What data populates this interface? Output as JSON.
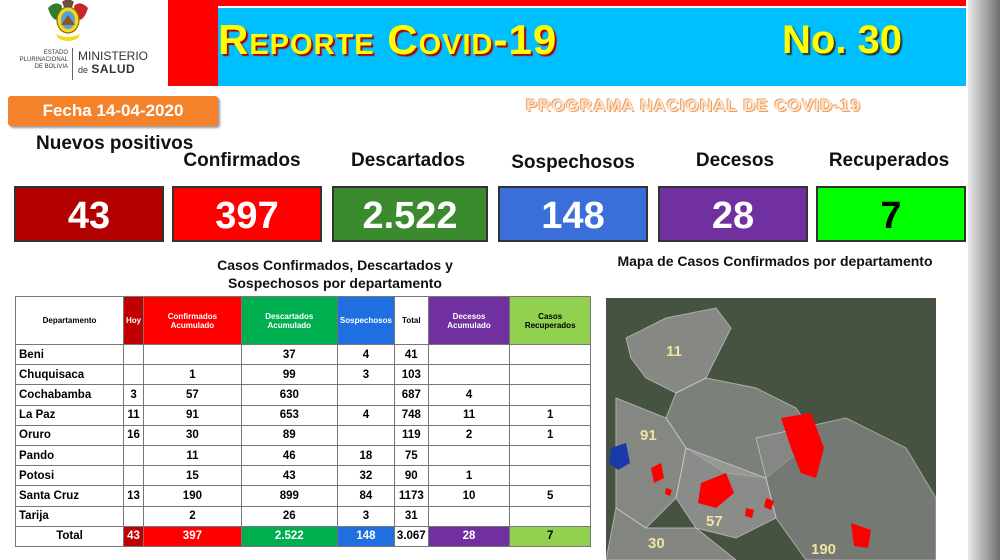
{
  "header": {
    "logo": {
      "state_lines": [
        "ESTADO",
        "PLURINACIONAL",
        "DE BOLIVIA"
      ],
      "ministry_top": "MINISTERIO",
      "ministry_de": "de",
      "ministry_bottom": "SALUD"
    },
    "title": "Reporte Covid-19",
    "report_number": "No. 30",
    "date": "Fecha 14-04-2020",
    "program": "PROGRAMA NACIONAL DE COVID-19"
  },
  "colors": {
    "banner_red": "#ff0000",
    "banner_cyan": "#00bfff",
    "title_yellow": "#ffff00",
    "date_orange": "#f4822a"
  },
  "stats": [
    {
      "label": "Nuevos positivos",
      "value": "43",
      "color": "#b30000"
    },
    {
      "label": "Confirmados",
      "value": "397",
      "color": "#ff0000"
    },
    {
      "label": "Descartados",
      "value": "2.522",
      "color": "#3c8a2e"
    },
    {
      "label": "Sospechosos",
      "value": "148",
      "color": "#3a6ed8"
    },
    {
      "label": "Decesos",
      "value": "28",
      "color": "#7030a0"
    },
    {
      "label": "Recuperados",
      "value": "7",
      "color": "#00ff00",
      "text_color": "#000000"
    }
  ],
  "table": {
    "title": "Casos Confirmados, Descartados y Sospechosos por departamento",
    "headers": [
      {
        "label": "Departamento",
        "bg": "#ffffff",
        "fg": "#000000"
      },
      {
        "label": "Hoy",
        "bg": "#c00000",
        "fg": "#ffffff"
      },
      {
        "label": "Confirmados Acumulado",
        "bg": "#ff0000",
        "fg": "#ffffff"
      },
      {
        "label": "Descartados Acumulado",
        "bg": "#00b050",
        "fg": "#ffffff"
      },
      {
        "label": "Sospechosos",
        "bg": "#1f6fe0",
        "fg": "#ffffff"
      },
      {
        "label": "Total",
        "bg": "#ffffff",
        "fg": "#000000"
      },
      {
        "label": "Decesos Acumulado",
        "bg": "#7030a0",
        "fg": "#ffffff"
      },
      {
        "label": "Casos Recuperados",
        "bg": "#92d050",
        "fg": "#000000"
      }
    ],
    "rows": [
      [
        "Beni",
        "",
        "",
        "37",
        "4",
        "41",
        "",
        ""
      ],
      [
        "Chuquisaca",
        "",
        "1",
        "99",
        "3",
        "103",
        "",
        ""
      ],
      [
        "Cochabamba",
        "3",
        "57",
        "630",
        "",
        "687",
        "4",
        ""
      ],
      [
        "La Paz",
        "11",
        "91",
        "653",
        "4",
        "748",
        "11",
        "1"
      ],
      [
        "Oruro",
        "16",
        "30",
        "89",
        "",
        "119",
        "2",
        "1"
      ],
      [
        "Pando",
        "",
        "11",
        "46",
        "18",
        "75",
        "",
        ""
      ],
      [
        "Potosi",
        "",
        "15",
        "43",
        "32",
        "90",
        "1",
        ""
      ],
      [
        "Santa Cruz",
        "13",
        "190",
        "899",
        "84",
        "1173",
        "10",
        "5"
      ],
      [
        "Tarija",
        "",
        "2",
        "26",
        "3",
        "31",
        "",
        ""
      ]
    ],
    "total": [
      "Total",
      "43",
      "397",
      "2.522",
      "148",
      "3.067",
      "28",
      "7"
    ]
  },
  "map": {
    "title": "Mapa de Casos Confirmados por departamento",
    "labels": [
      "11",
      "91",
      "57",
      "30",
      "190"
    ]
  }
}
